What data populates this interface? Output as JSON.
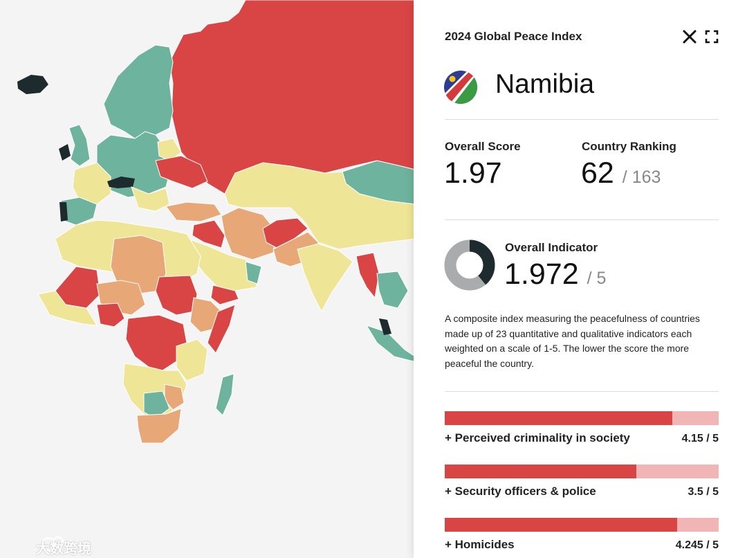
{
  "panel": {
    "title": "2024 Global Peace Index",
    "country": "Namibia",
    "overall_score_label": "Overall Score",
    "overall_score": "1.97",
    "ranking_label": "Country Ranking",
    "ranking": "62",
    "ranking_total": "/ 163",
    "indicator_label": "Overall Indicator",
    "indicator_value": "1.972",
    "indicator_total": "/ 5",
    "indicator_fraction": 0.39,
    "description": "A composite index measuring the peacefulness of countries made up of 23 quantitative and qualitative indicators each weighted on a scale of 1-5. The lower the score the more peaceful the country.",
    "indicators": [
      {
        "label": "+ Perceived criminality in society",
        "value": "4.15 / 5",
        "fraction": 0.83
      },
      {
        "label": "+ Security officers & police",
        "value": "3.5 / 5",
        "fraction": 0.7
      },
      {
        "label": "+ Homicides",
        "value": "4.245 / 5",
        "fraction": 0.849
      }
    ]
  },
  "icons": {
    "close": "close-icon",
    "expand": "fullscreen-icon",
    "flag": "namibia-flag-icon"
  },
  "colors": {
    "very_low_peace": "#d94545",
    "low_peace": "#e8a777",
    "medium_peace": "#efe596",
    "high_peace": "#6db39d",
    "very_high_peace": "#1d2a2e",
    "bar_track": "#f1b5b5"
  },
  "watermark": "大数跨境"
}
